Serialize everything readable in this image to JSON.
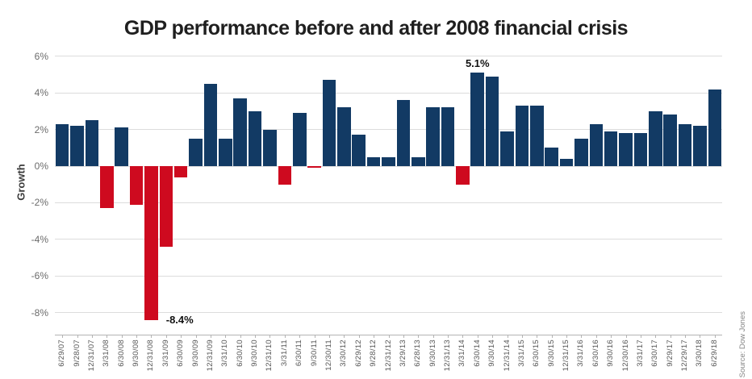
{
  "footer": {
    "source_label": "Source: Dow Jones"
  },
  "chart_data": {
    "type": "bar",
    "title": "GDP performance before and after 2008 financial crisis",
    "xlabel": "",
    "ylabel": "Growth",
    "grid": true,
    "legend": false,
    "ylim": [
      -8.8,
      6.4
    ],
    "ytick_labels": [
      "6%",
      "4%",
      "2%",
      "0%",
      "-2%",
      "-4%",
      "-6%",
      "-8%"
    ],
    "ytick_values": [
      6,
      4,
      2,
      0,
      -2,
      -4,
      -6,
      -8
    ],
    "categories": [
      "6/29/07",
      "9/28/07",
      "12/31/07",
      "3/31/08",
      "6/30/08",
      "9/30/08",
      "12/31/08",
      "3/31/09",
      "6/30/09",
      "9/30/09",
      "12/31/09",
      "3/31/10",
      "6/30/10",
      "9/30/10",
      "12/31/10",
      "3/31/11",
      "6/30/11",
      "9/30/11",
      "12/30/11",
      "3/30/12",
      "6/29/12",
      "9/28/12",
      "12/31/12",
      "3/29/13",
      "6/28/13",
      "9/30/13",
      "12/31/13",
      "3/31/14",
      "6/30/14",
      "9/30/14",
      "12/31/14",
      "3/31/15",
      "6/30/15",
      "9/30/15",
      "12/31/15",
      "3/31/16",
      "6/30/16",
      "9/30/16",
      "12/30/16",
      "3/31/17",
      "6/30/17",
      "9/29/17",
      "12/29/17",
      "3/30/18",
      "6/29/18"
    ],
    "values": [
      2.3,
      2.2,
      2.5,
      -2.3,
      2.1,
      -2.1,
      -8.4,
      -4.4,
      -0.6,
      1.5,
      4.5,
      1.5,
      3.7,
      3.0,
      2.0,
      -1.0,
      2.9,
      -0.1,
      4.7,
      3.2,
      1.7,
      0.5,
      0.5,
      3.6,
      0.5,
      3.2,
      3.2,
      -1.0,
      5.1,
      4.9,
      1.9,
      3.3,
      3.3,
      1.0,
      0.4,
      1.5,
      2.3,
      1.9,
      1.8,
      1.8,
      3.0,
      2.8,
      2.3,
      2.2,
      4.2
    ],
    "colors": {
      "positive": "#123a64",
      "negative": "#ce0a1f"
    },
    "annotations": [
      {
        "text": "5.1%",
        "index": 28,
        "placement": "above"
      },
      {
        "text": "-8.4%",
        "index": 6,
        "placement": "right"
      }
    ]
  }
}
